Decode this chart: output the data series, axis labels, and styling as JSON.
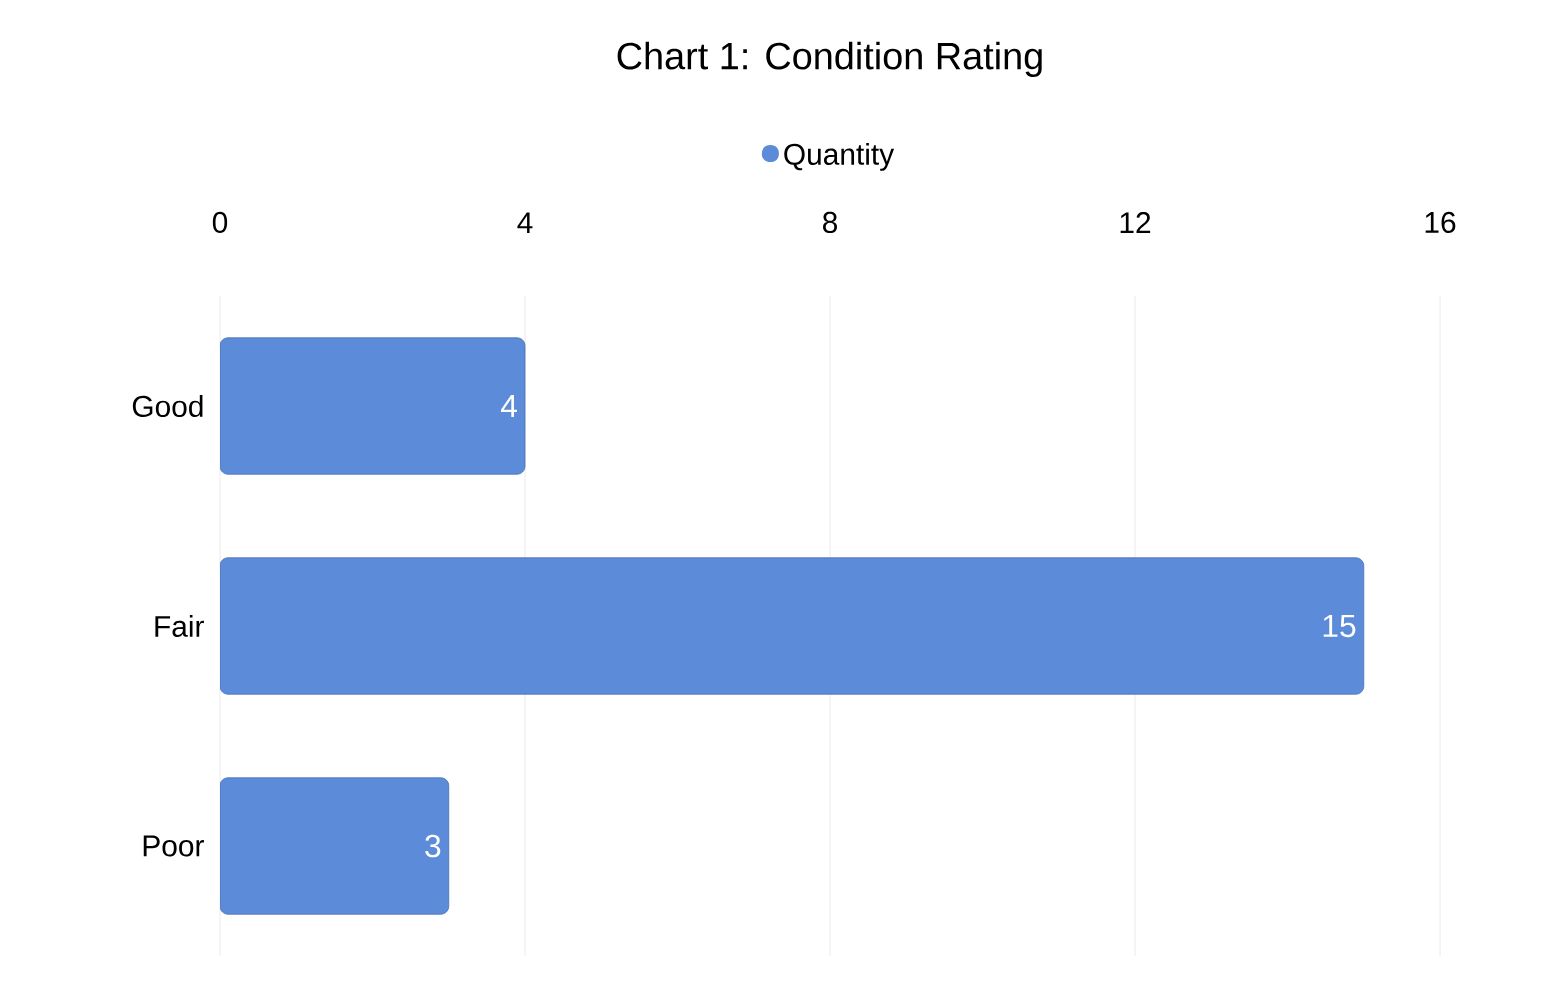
{
  "chart_data": {
    "type": "bar",
    "orientation": "horizontal",
    "title": "Chart 1: Condition Rating",
    "categories": [
      "Good",
      "Fair",
      "Poor"
    ],
    "series": [
      {
        "name": "Quantity",
        "color": "#5b8bd9",
        "values": [
          4,
          15,
          3
        ]
      }
    ],
    "xlim": [
      0,
      16
    ],
    "xticks": [
      0,
      4,
      8,
      12,
      16
    ],
    "grid": "x",
    "legend": "top",
    "data_labels": true
  }
}
